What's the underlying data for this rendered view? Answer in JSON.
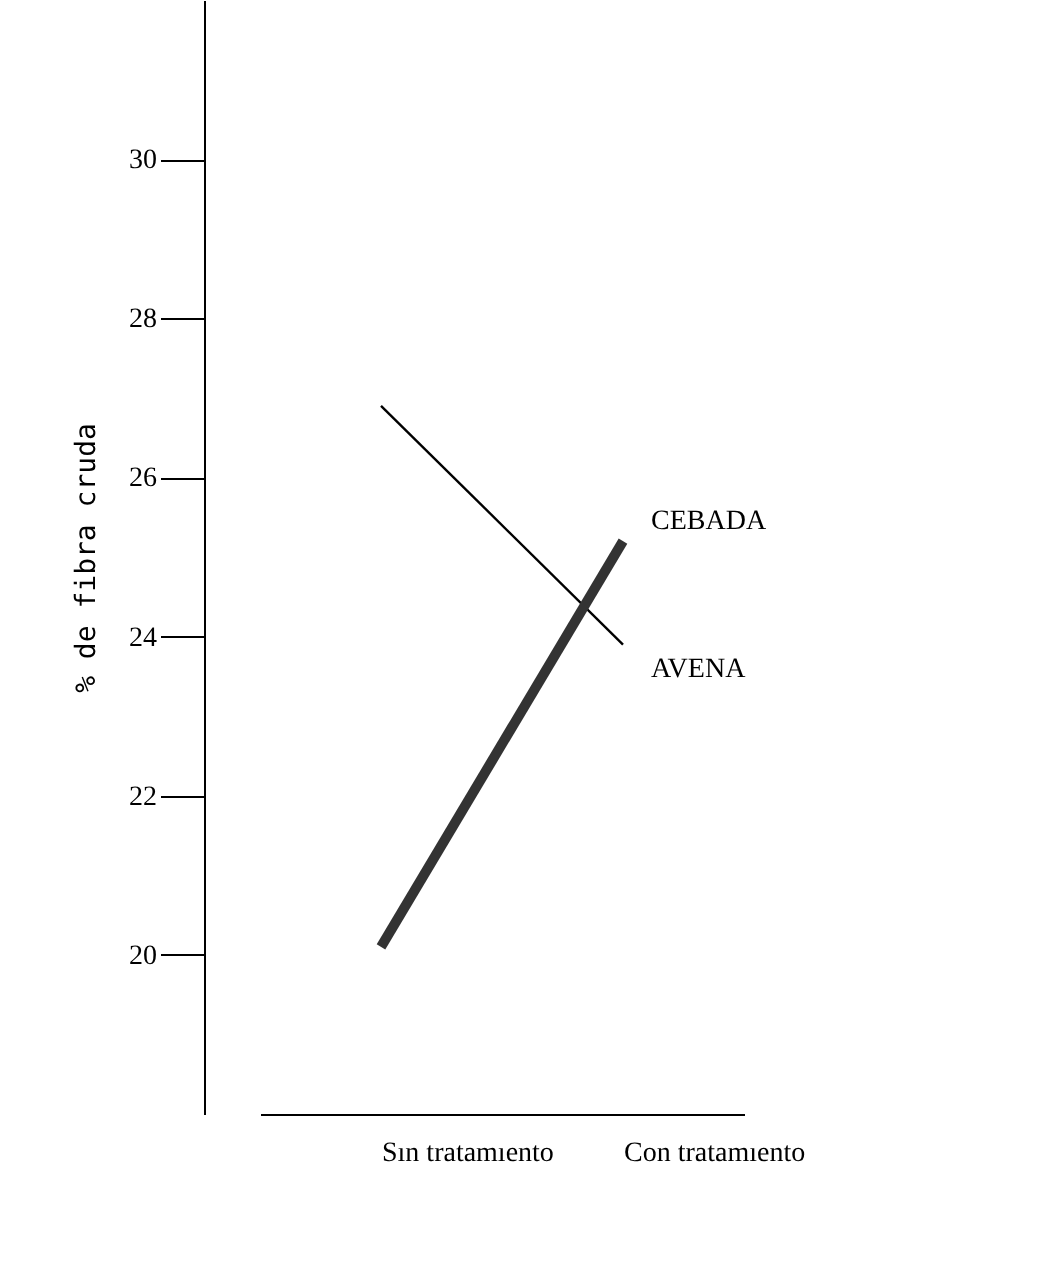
{
  "chart_data": {
    "type": "line",
    "ylabel": "% de fibra cruda",
    "categories": [
      "Sın tratamıento",
      "Con tratamıento"
    ],
    "series": [
      {
        "name": "AVENA",
        "color": "#000000",
        "values": [
          26.9,
          23.9
        ]
      },
      {
        "name": "CEBADA",
        "color": "#333333",
        "values": [
          20.1,
          25.2
        ]
      }
    ],
    "ylim": [
      18,
      32
    ],
    "yticks": [
      20,
      22,
      24,
      26,
      28,
      30
    ],
    "marker": "none"
  }
}
